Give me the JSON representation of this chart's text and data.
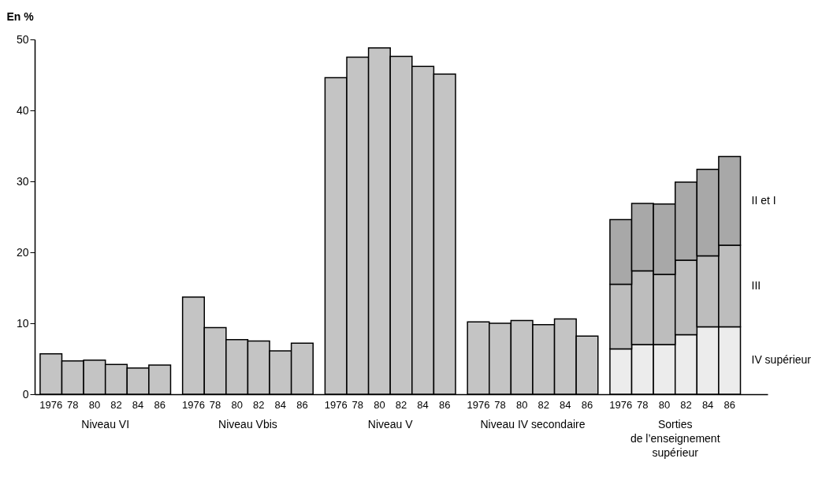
{
  "chart_data": {
    "type": "bar",
    "stacked": true,
    "ylabel": "En %",
    "categories": [
      "1976",
      "78",
      "80",
      "82",
      "84",
      "86",
      "1976",
      "78",
      "80",
      "82",
      "84",
      "86",
      "1976",
      "78",
      "80",
      "82",
      "84",
      "86",
      "1976",
      "78",
      "80",
      "82",
      "84",
      "86",
      "1976",
      "78",
      "80",
      "82",
      "84",
      "86"
    ],
    "series": [
      {
        "color": "#c4c4c4",
        "values": [
          5.7,
          4.7,
          4.8,
          4.2,
          3.7,
          4.1,
          13.7,
          9.4,
          7.7,
          7.5,
          6.1,
          7.2,
          44.6,
          47.5,
          48.8,
          47.6,
          46.2,
          45.1,
          10.2,
          10.0,
          10.4,
          9.8,
          10.6,
          8.2,
          null,
          null,
          null,
          null,
          null,
          null
        ]
      },
      {
        "name": "IV supérieur",
        "color": "#ececec",
        "values": [
          null,
          null,
          null,
          null,
          null,
          null,
          null,
          null,
          null,
          null,
          null,
          null,
          null,
          null,
          null,
          null,
          null,
          null,
          null,
          null,
          null,
          null,
          null,
          null,
          6.4,
          7.0,
          7.0,
          8.4,
          9.5,
          9.5
        ]
      },
      {
        "name": "III",
        "color": "#bdbdbd",
        "values": [
          null,
          null,
          null,
          null,
          null,
          null,
          null,
          null,
          null,
          null,
          null,
          null,
          null,
          null,
          null,
          null,
          null,
          null,
          null,
          null,
          null,
          null,
          null,
          null,
          9.1,
          10.4,
          9.9,
          10.5,
          10.0,
          11.5
        ]
      },
      {
        "name": "II et I",
        "color": "#a8a8a8",
        "values": [
          null,
          null,
          null,
          null,
          null,
          null,
          null,
          null,
          null,
          null,
          null,
          null,
          null,
          null,
          null,
          null,
          null,
          null,
          null,
          null,
          null,
          null,
          null,
          null,
          9.1,
          9.5,
          9.9,
          11.0,
          12.2,
          12.5
        ]
      }
    ],
    "ylim": [
      0,
      50
    ],
    "yticks": [
      0,
      10,
      20,
      30,
      40,
      50
    ],
    "grid": false,
    "legend": false,
    "annotations": [
      "Niveau VI",
      "Niveau Vbis",
      "Niveau V",
      "Niveau IV secondaire",
      "Sorties\nde l’enseignement\nsupérieur"
    ]
  }
}
